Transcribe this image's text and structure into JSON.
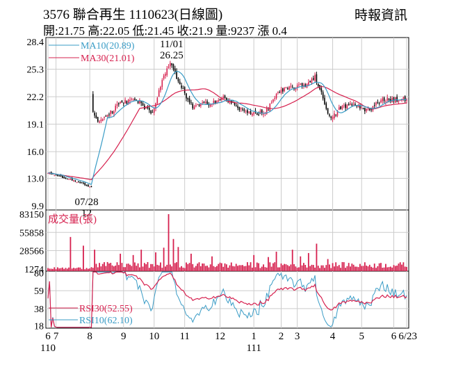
{
  "header": {
    "title": "3576  聯合再生  1110623(日線圖)",
    "source": "時報資訊",
    "quote": "開:21.75 高:22.05 低:21.45 收:21.9 量:9237 漲 0.4"
  },
  "colors": {
    "up": "#d6204e",
    "down": "#000000",
    "ma10": "#3a9cc6",
    "ma30": "#d6204e",
    "volume": "#d6204e",
    "rsi30": "#d6204e",
    "rsi10": "#3a9cc6",
    "grid": "#cccccc"
  },
  "chart_data": [
    {
      "type": "candlestick",
      "panel": "price",
      "y_ticks": [
        28.4,
        25.3,
        22.2,
        19.1,
        16.0,
        13.0,
        9.9
      ],
      "ylim": [
        9.9,
        28.4
      ],
      "legend": [
        {
          "name": "MA10(20.89)",
          "color": "#3a9cc6"
        },
        {
          "name": "MA30(21.01)",
          "color": "#d6204e"
        }
      ],
      "annotations": [
        {
          "label": "11/01",
          "sublabel": "26.25",
          "value": 26.25,
          "type": "high"
        },
        {
          "label": "07/28",
          "sublabel": "12",
          "value": 12.0,
          "type": "low"
        }
      ],
      "anchors": [
        {
          "day": 0,
          "close": 13.6
        },
        {
          "day": 20,
          "close": 12.5
        },
        {
          "day": 27,
          "close": 12.0
        },
        {
          "day": 28,
          "close": 20.5
        },
        {
          "day": 32,
          "close": 19.2
        },
        {
          "day": 45,
          "close": 21.5
        },
        {
          "day": 55,
          "close": 21.8
        },
        {
          "day": 65,
          "close": 20.2
        },
        {
          "day": 72,
          "close": 24.5
        },
        {
          "day": 76,
          "close": 26.0
        },
        {
          "day": 82,
          "close": 23.5
        },
        {
          "day": 90,
          "close": 21.0
        },
        {
          "day": 100,
          "close": 21.5
        },
        {
          "day": 110,
          "close": 22.0
        },
        {
          "day": 122,
          "close": 20.5
        },
        {
          "day": 135,
          "close": 20.3
        },
        {
          "day": 142,
          "close": 22.5
        },
        {
          "day": 150,
          "close": 23.2
        },
        {
          "day": 160,
          "close": 23.5
        },
        {
          "day": 166,
          "close": 24.5
        },
        {
          "day": 172,
          "close": 21.5
        },
        {
          "day": 176,
          "close": 19.6
        },
        {
          "day": 182,
          "close": 21.0
        },
        {
          "day": 190,
          "close": 21.3
        },
        {
          "day": 200,
          "close": 20.6
        },
        {
          "day": 207,
          "close": 21.9
        }
      ]
    },
    {
      "type": "bar",
      "panel": "volume",
      "series_name": "成交量(張)",
      "y_ticks": [
        83150,
        55858,
        28566,
        1274
      ],
      "ylim": [
        0,
        83150
      ],
      "spikes": [
        {
          "day": 14,
          "value": 49000
        },
        {
          "day": 22,
          "value": 36000
        },
        {
          "day": 29,
          "value": 30000
        },
        {
          "day": 45,
          "value": 24000
        },
        {
          "day": 53,
          "value": 22000
        },
        {
          "day": 58,
          "value": 30000
        },
        {
          "day": 67,
          "value": 26000
        },
        {
          "day": 72,
          "value": 33000
        },
        {
          "day": 75,
          "value": 83150
        },
        {
          "day": 78,
          "value": 46000
        },
        {
          "day": 81,
          "value": 34000
        },
        {
          "day": 89,
          "value": 24000
        },
        {
          "day": 102,
          "value": 20000
        },
        {
          "day": 128,
          "value": 22000
        },
        {
          "day": 137,
          "value": 19000
        },
        {
          "day": 142,
          "value": 27000
        },
        {
          "day": 152,
          "value": 30000
        },
        {
          "day": 157,
          "value": 20000
        },
        {
          "day": 162,
          "value": 25000
        },
        {
          "day": 167,
          "value": 39000
        },
        {
          "day": 174,
          "value": 16000
        }
      ]
    },
    {
      "type": "line",
      "panel": "rsi",
      "y_ticks": [
        80,
        59,
        38,
        18
      ],
      "ylim": [
        15,
        82
      ],
      "legend": [
        {
          "name": "RSI30(52.55)",
          "color": "#d6204e"
        },
        {
          "name": "RSI10(62.10)",
          "color": "#3a9cc6"
        }
      ]
    },
    {
      "type": "axis",
      "panel": "time",
      "x_ticks": [
        {
          "label": "6",
          "day": 0
        },
        {
          "label": "7",
          "day": 5
        },
        {
          "label": "8",
          "day": 26
        },
        {
          "label": "9",
          "day": 47
        },
        {
          "label": "10",
          "day": 66
        },
        {
          "label": "11",
          "day": 85
        },
        {
          "label": "12",
          "day": 107
        },
        {
          "label": "1",
          "day": 128
        },
        {
          "label": "2",
          "day": 145
        },
        {
          "label": "3",
          "day": 155
        },
        {
          "label": "4",
          "day": 177
        },
        {
          "label": "5",
          "day": 195
        },
        {
          "label": "6",
          "day": 215
        },
        {
          "label": "6/23",
          "day": 223
        }
      ],
      "year_labels": [
        {
          "label": "110",
          "day": 0
        },
        {
          "label": "111",
          "day": 128
        }
      ]
    }
  ]
}
